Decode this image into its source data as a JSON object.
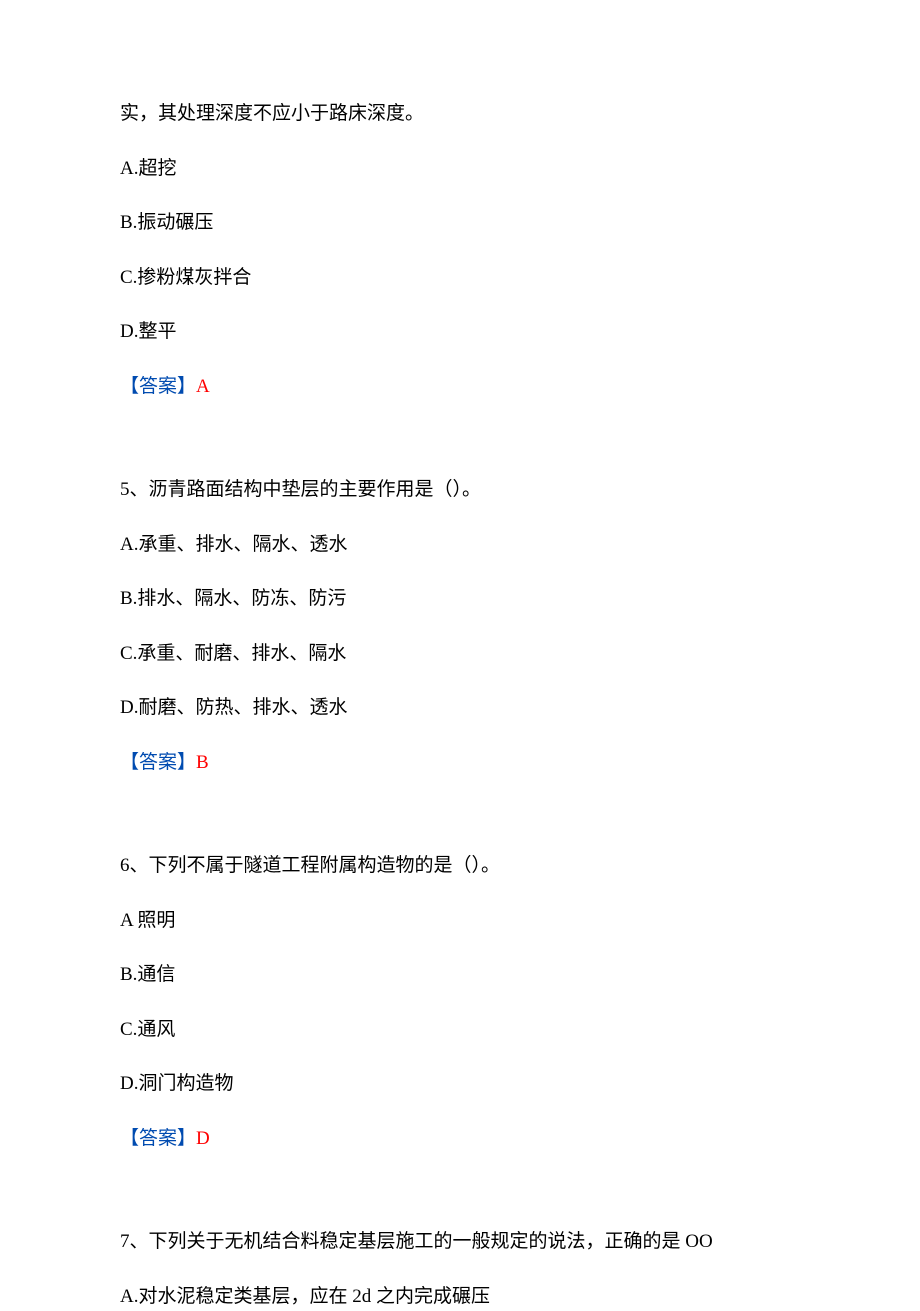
{
  "q4": {
    "stem": "实，其处理深度不应小于路床深度。",
    "optA": "A.超挖",
    "optB": "B.振动碾压",
    "optC": "C.掺粉煤灰拌合",
    "optD": "D.整平",
    "answerBracket": "【答案】",
    "answerLetter": "A"
  },
  "q5": {
    "stem": "5、沥青路面结构中垫层的主要作用是（）。",
    "optA": "A.承重、排水、隔水、透水",
    "optB": "B.排水、隔水、防冻、防污",
    "optC": "C.承重、耐磨、排水、隔水",
    "optD": "D.耐磨、防热、排水、透水",
    "answerBracket": "【答案】",
    "answerLetter": "B"
  },
  "q6": {
    "stem": "6、下列不属于隧道工程附属构造物的是（）。",
    "optA": "A 照明",
    "optB": "B.通信",
    "optC": "C.通风",
    "optD": "D.洞门构造物",
    "answerBracket": "【答案】",
    "answerLetter": "D"
  },
  "q7": {
    "stem": "7、下列关于无机结合料稳定基层施工的一般规定的说法，正确的是 OO",
    "optA": "A.对水泥稳定类基层，应在 2d 之内完成碾压"
  }
}
